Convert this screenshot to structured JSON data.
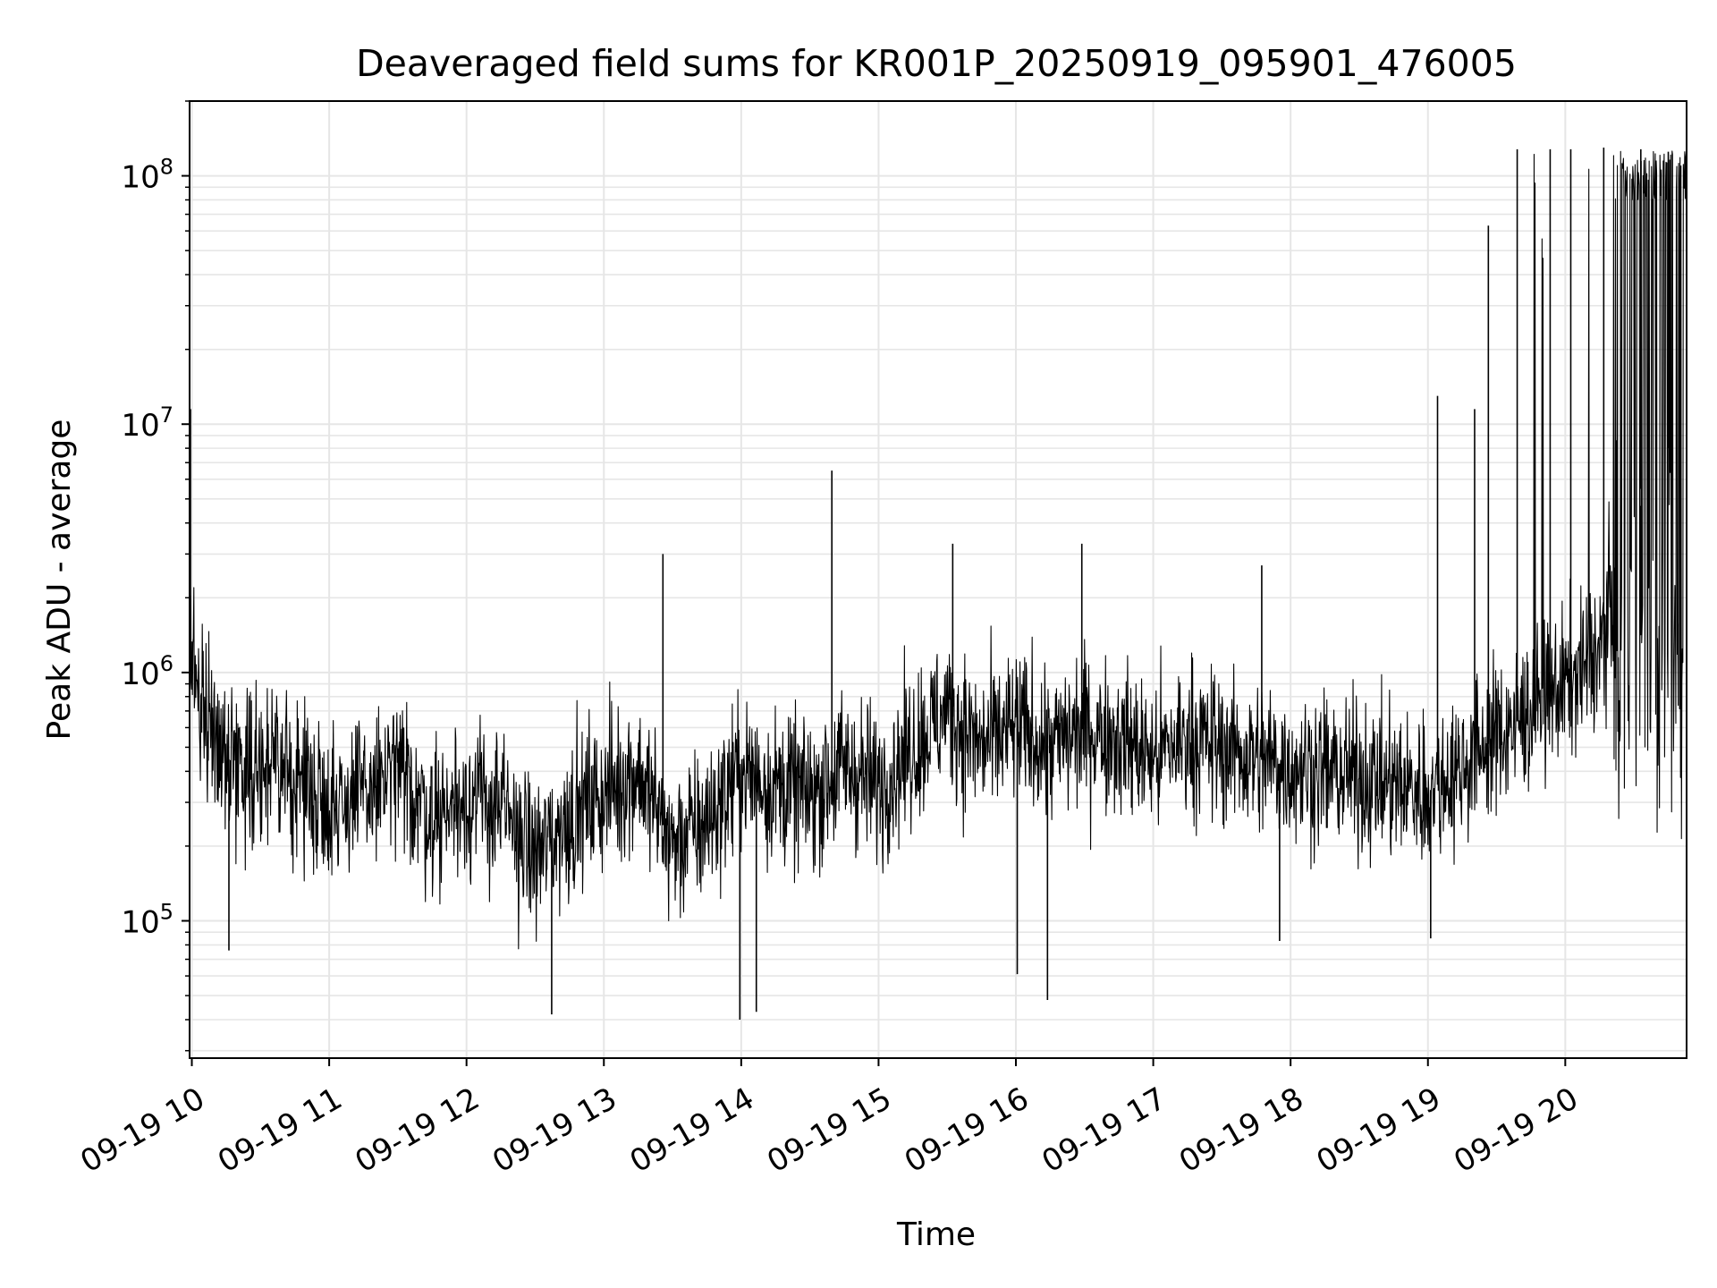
{
  "chart_data": {
    "type": "line",
    "title": "Deaveraged field sums for KR001P_20250919_095901_476005",
    "xlabel": "Time",
    "ylabel": "Peak ADU - average",
    "yscale": "log",
    "xlim": [
      "2025-09-19 09:59:01",
      "2025-09-19 20:53:00"
    ],
    "ylim": [
      28000,
      200000000
    ],
    "grid": true,
    "legend": "none",
    "x_tick_labels": [
      "09-19 10",
      "09-19 11",
      "09-19 12",
      "09-19 13",
      "09-19 14",
      "09-19 15",
      "09-19 16",
      "09-19 17",
      "09-19 18",
      "09-19 19",
      "09-19 20"
    ],
    "x_tick_hours": [
      10,
      11,
      12,
      13,
      14,
      15,
      16,
      17,
      18,
      19,
      20
    ],
    "y_tick_labels": [
      {
        "base": "10",
        "exp": "5",
        "value": 100000
      },
      {
        "base": "10",
        "exp": "6",
        "value": 1000000
      },
      {
        "base": "10",
        "exp": "7",
        "value": 10000000
      },
      {
        "base": "10",
        "exp": "8",
        "value": 100000000
      }
    ],
    "series": [
      {
        "color": "#000000",
        "sampled_x_hours": [
          9.98,
          10.25,
          10.5,
          10.75,
          11.0,
          11.25,
          11.5,
          11.75,
          12.0,
          12.25,
          12.5,
          12.75,
          13.0,
          13.25,
          13.5,
          13.75,
          14.0,
          14.25,
          14.5,
          14.75,
          15.0,
          15.25,
          15.5,
          15.75,
          16.0,
          16.25,
          16.5,
          16.75,
          17.0,
          17.25,
          17.5,
          17.75,
          18.0,
          18.25,
          18.5,
          18.75,
          19.0,
          19.25,
          19.5,
          19.75,
          20.0,
          20.25,
          20.5,
          20.75,
          20.88
        ],
        "sampled_y": [
          1100000,
          450000,
          420000,
          380000,
          300000,
          320000,
          400000,
          260000,
          320000,
          280000,
          180000,
          260000,
          330000,
          400000,
          200000,
          250000,
          400000,
          350000,
          320000,
          420000,
          350000,
          500000,
          700000,
          500000,
          600000,
          500000,
          600000,
          550000,
          450000,
          550000,
          500000,
          450000,
          420000,
          400000,
          380000,
          350000,
          330000,
          420000,
          550000,
          700000,
          900000,
          1200000,
          5000000,
          8000000,
          6000000
        ],
        "notable_peaks": [
          {
            "x": 9.99,
            "y": 11500000
          },
          {
            "x": 13.43,
            "y": 3000000
          },
          {
            "x": 14.66,
            "y": 6500000
          },
          {
            "x": 15.54,
            "y": 3300000
          },
          {
            "x": 16.48,
            "y": 3300000
          },
          {
            "x": 17.79,
            "y": 2700000
          },
          {
            "x": 19.07,
            "y": 13000000
          },
          {
            "x": 19.34,
            "y": 11500000
          },
          {
            "x": 19.44,
            "y": 63000000
          },
          {
            "x": 19.65,
            "y": 128000000
          },
          {
            "x": 19.89,
            "y": 128000000
          },
          {
            "x": 20.04,
            "y": 128000000
          },
          {
            "x": 20.28,
            "y": 130000000
          },
          {
            "x": 20.55,
            "y": 128000000
          },
          {
            "x": 20.75,
            "y": 125000000
          }
        ],
        "notable_troughs": [
          {
            "x": 10.27,
            "y": 76000
          },
          {
            "x": 12.62,
            "y": 42000
          },
          {
            "x": 13.99,
            "y": 40000
          },
          {
            "x": 14.11,
            "y": 43000
          },
          {
            "x": 16.01,
            "y": 61000
          },
          {
            "x": 16.23,
            "y": 48000
          },
          {
            "x": 17.92,
            "y": 83000
          },
          {
            "x": 19.02,
            "y": 85000
          }
        ]
      }
    ]
  }
}
